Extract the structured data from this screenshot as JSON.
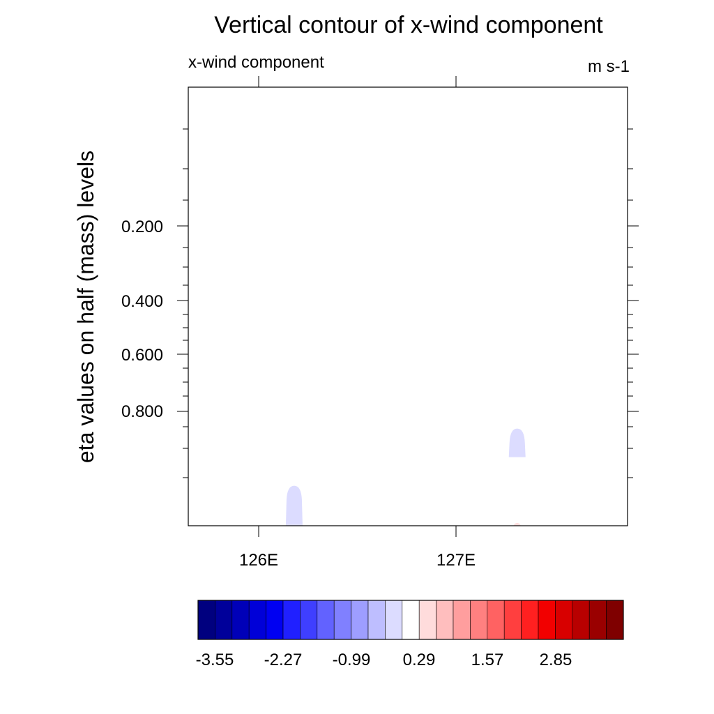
{
  "chart_data": {
    "type": "heatmap",
    "title": "Vertical contour of x-wind component",
    "left_string": "x-wind component",
    "right_string": "m s-1",
    "ylabel": "eta values on half (mass) levels",
    "xlabel": "",
    "x_ticks": [
      "126E",
      "127E"
    ],
    "y_ticks": [
      "0.200",
      "0.400",
      "0.600",
      "0.800"
    ],
    "colorbar_labels": [
      "-3.55",
      "-2.27",
      "-0.99",
      "0.29",
      "1.57",
      "2.85"
    ],
    "colorbar_colors": [
      "#00007f",
      "#00009a",
      "#0000b8",
      "#0000d8",
      "#0000f2",
      "#2020ff",
      "#3f3fff",
      "#6262ff",
      "#8080ff",
      "#9e9eff",
      "#bebeff",
      "#dcdcff",
      "#ffffff",
      "#ffdcdc",
      "#ffbebe",
      "#ff9e9e",
      "#ff8080",
      "#ff6262",
      "#ff3f3f",
      "#ff2020",
      "#f20000",
      "#d80000",
      "#b80000",
      "#9a0000",
      "#7f0000"
    ],
    "features": [
      {
        "lon": 126.18,
        "eta_top": 0.93,
        "eta_bottom": 1.0,
        "value": -0.5,
        "color": "#dcdcff"
      },
      {
        "lon": 127.31,
        "eta_top": 0.83,
        "eta_bottom": 0.88,
        "value": -0.5,
        "color": "#dcdcff"
      },
      {
        "lon": 127.31,
        "eta_top": 0.995,
        "eta_bottom": 1.0,
        "value": 0.6,
        "color": "#ffdcdc"
      }
    ],
    "grid": false
  }
}
